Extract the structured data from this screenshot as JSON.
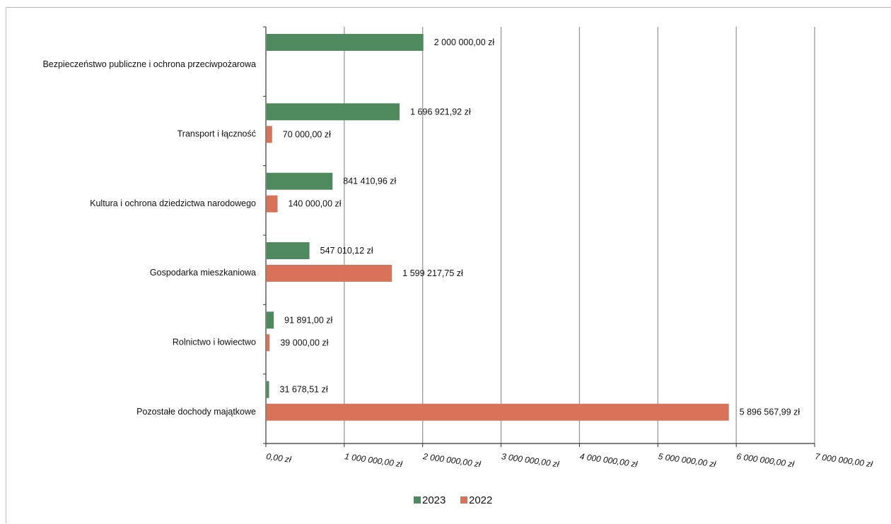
{
  "chart_data": {
    "type": "bar",
    "orientation": "horizontal",
    "categories": [
      "Bezpieczeństwo publiczne i ochrona przeciwpożarowa",
      "Transport i łączność",
      "Kultura i ochrona dziedzictwa narodowego",
      "Gospodarka mieszkaniowa",
      "Rolnictwo i łowiectwo",
      "Pozostałe dochody majątkowe"
    ],
    "series": [
      {
        "name": "2023",
        "color": "#4e8a5e",
        "values": [
          2000000.0,
          1696921.92,
          841410.96,
          547010.12,
          91891.0,
          31678.51
        ],
        "labels": [
          "2 000 000,00 zł",
          "1 696 921,92 zł",
          "841 410,96 zł",
          "547 010,12 zł",
          "91 891,00 zł",
          "31 678,51 zł"
        ]
      },
      {
        "name": "2022",
        "color": "#d8735a",
        "values": [
          null,
          70000.0,
          140000.0,
          1599217.75,
          39000.0,
          5896567.99
        ],
        "labels": [
          "",
          "70 000,00 zł",
          "140 000,00 zł",
          "1 599 217,75 zł",
          "39 000,00 zł",
          "5 896 567,99 zł"
        ]
      }
    ],
    "xlim": [
      0,
      7000000
    ],
    "xticks": [
      0,
      1000000,
      2000000,
      3000000,
      4000000,
      5000000,
      6000000,
      7000000
    ],
    "xtick_labels": [
      "0,00 zł",
      "1 000 000,00 zł",
      "2 000 000,00 zł",
      "3 000 000,00 zł",
      "4 000 000,00 zł",
      "5 000 000,00 zł",
      "6 000 000,00 zł",
      "7 000 000,00 zł"
    ],
    "grid": "vertical",
    "legend": {
      "position": "bottom",
      "entries": [
        "2023",
        "2022"
      ]
    }
  }
}
